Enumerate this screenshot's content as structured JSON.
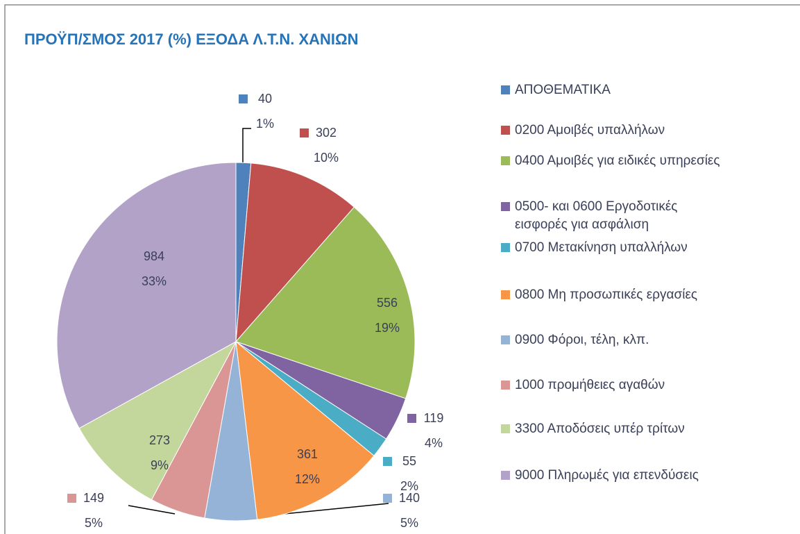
{
  "chart_data": {
    "type": "pie",
    "title": "ΠΡΟΫΠ/ΣΜΟΣ 2017 (%)  ΕΞΟΔΑ Λ.Τ.Ν. ΧΑΝΙΩΝ",
    "categories": [
      "ΑΠΟΘΕΜΑΤΙΚΑ",
      "0200 Αμοιβές υπαλλήλων",
      "0400 Αμοιβές για ειδικές υπηρεσίες",
      "0500- και 0600 Εργοδοτικές\nεισφορές για  ασφάλιση",
      "0700  Μετακίνηση υπαλλήλων",
      "0800 Μη προσωπικές εργασίες",
      "0900 Φόροι, τέλη, κλπ.",
      "1000 προμήθειες  αγαθών",
      "3300 Αποδόσεις υπέρ τρίτων",
      "9000 Πληρωμές για επενδύσεις"
    ],
    "values": [
      40,
      302,
      556,
      119,
      55,
      361,
      140,
      149,
      273,
      984
    ],
    "percent_labels": [
      "1%",
      "10%",
      "19%",
      "4%",
      "2%",
      "12%",
      "5%",
      "5%",
      "9%",
      "33%"
    ],
    "colors": [
      "#4f81bd",
      "#c0504d",
      "#9bbb59",
      "#8064a2",
      "#4bacc6",
      "#f79646",
      "#95b3d7",
      "#d99694",
      "#c3d69b",
      "#b2a2c7"
    ],
    "legend": "right"
  }
}
